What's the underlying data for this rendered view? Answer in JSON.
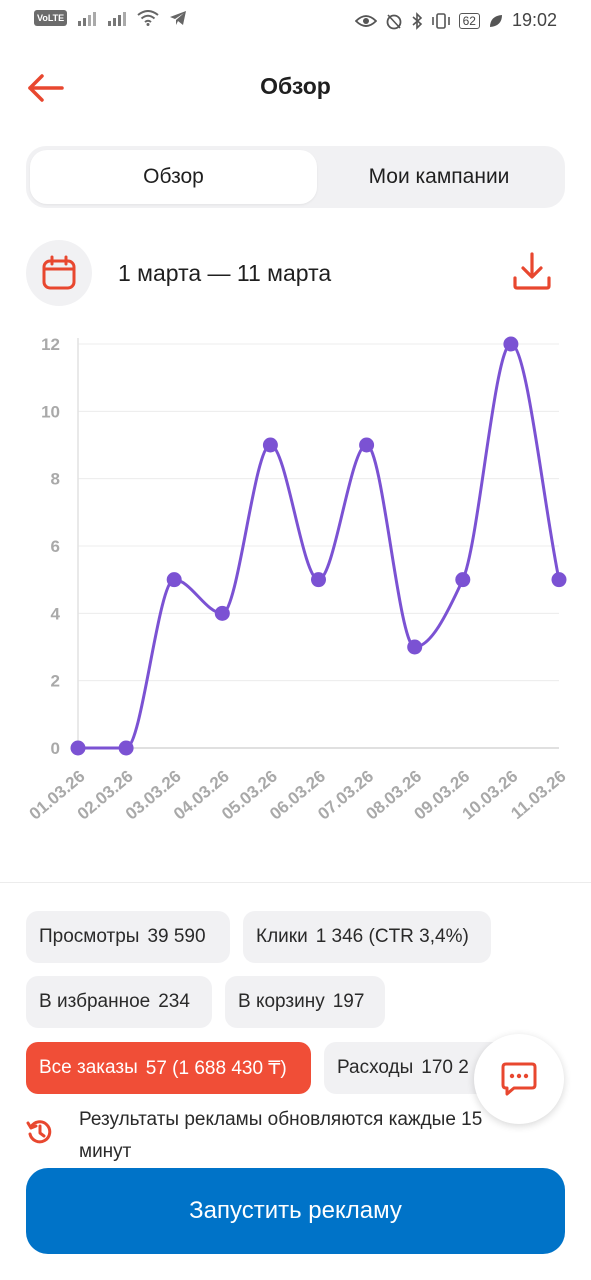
{
  "status_bar": {
    "volte": "VoLTE",
    "battery": "62",
    "time": "19:02"
  },
  "header": {
    "title": "Обзор",
    "back_icon": "arrow-left-icon"
  },
  "tabs": [
    {
      "label": "Обзор",
      "active": true
    },
    {
      "label": "Мои кампании",
      "active": false
    }
  ],
  "date_range": {
    "text": "1 марта — 11 марта",
    "calendar_icon": "calendar-icon",
    "download_icon": "download-icon"
  },
  "chart_data": {
    "type": "line",
    "title": "",
    "xlabel": "",
    "ylabel": "",
    "categories": [
      "01.03.26",
      "02.03.26",
      "03.03.26",
      "04.03.26",
      "05.03.26",
      "06.03.26",
      "07.03.26",
      "08.03.26",
      "09.03.26",
      "10.03.26",
      "11.03.26"
    ],
    "values": [
      0,
      0,
      5,
      4,
      9,
      5,
      9,
      3,
      5,
      12,
      5
    ],
    "yticks": [
      0,
      2,
      4,
      6,
      8,
      10,
      12
    ],
    "ylim": [
      0,
      12
    ],
    "grid": true,
    "line_color": "#7b52d3"
  },
  "stats": {
    "views": {
      "label": "Просмотры",
      "value": "39 590"
    },
    "clicks": {
      "label": "Клики",
      "value": "1 346 (CTR 3,4%)"
    },
    "favorites": {
      "label": "В избранное",
      "value": "234"
    },
    "cart": {
      "label": "В корзину",
      "value": "197"
    },
    "orders": {
      "label": "Все заказы",
      "value": "57 (1 688 430 ₸)"
    },
    "expenses": {
      "label": "Расходы",
      "value": "170 2"
    }
  },
  "info": {
    "text": "Результаты рекламы обновляются каждые 15 минут",
    "icon": "history-icon"
  },
  "chat_icon": "chat-icon",
  "cta": {
    "label": "Запустить рекламу"
  },
  "colors": {
    "accent_red": "#f04e37",
    "primary_blue": "#0073c8",
    "chart_purple": "#7b52d3"
  }
}
